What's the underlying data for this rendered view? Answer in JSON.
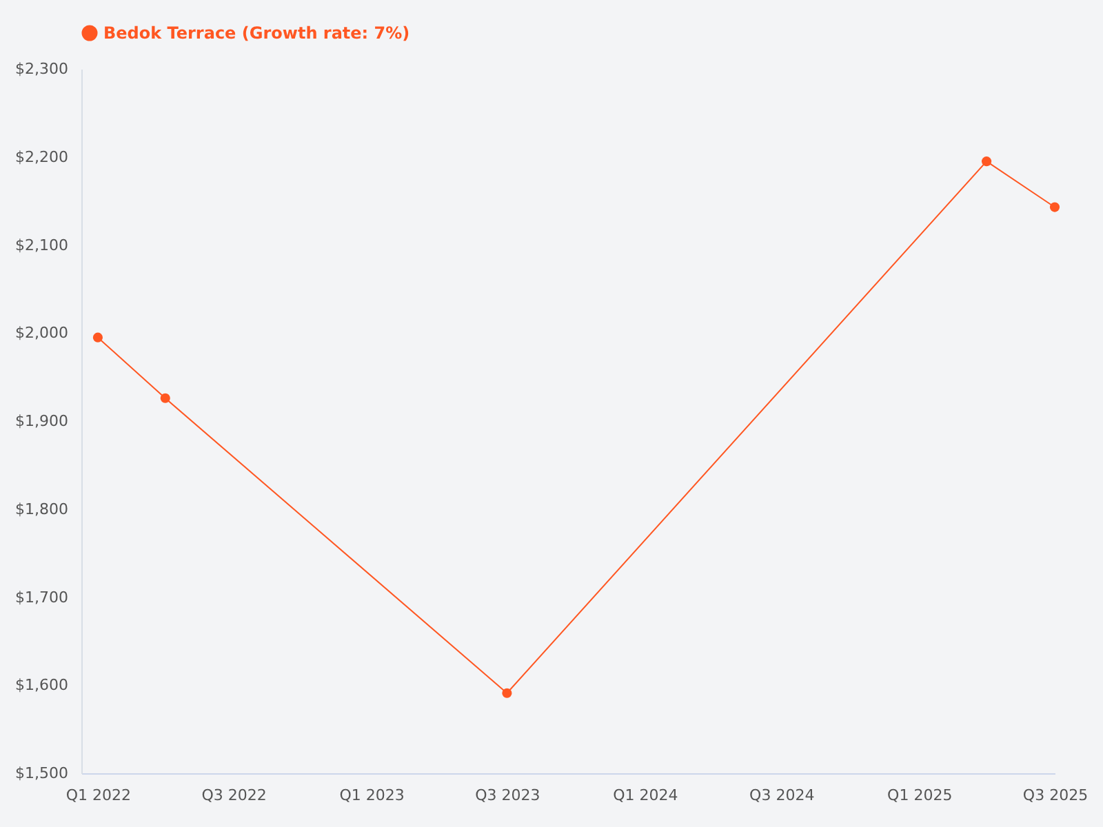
{
  "chart_data": {
    "type": "line",
    "x": [
      "2022-01-01",
      "2022-04-01",
      "2023-07-01",
      "2025-04-01",
      "2025-07-01"
    ],
    "series": [
      {
        "name": "Bedok Terrace (Growth rate: 7%)",
        "color": "#ff5722",
        "values": [
          1995,
          1926,
          1591,
          2195,
          2143
        ]
      }
    ],
    "xlim": [
      "2021-12-10",
      "2025-07-01"
    ],
    "xticks": [
      {
        "value": "2022-01-01",
        "label": "Q1 2022"
      },
      {
        "value": "2022-07-01",
        "label": "Q3 2022"
      },
      {
        "value": "2023-01-01",
        "label": "Q1 2023"
      },
      {
        "value": "2023-07-01",
        "label": "Q3 2023"
      },
      {
        "value": "2024-01-01",
        "label": "Q1 2024"
      },
      {
        "value": "2024-07-01",
        "label": "Q3 2024"
      },
      {
        "value": "2025-01-01",
        "label": "Q1 2025"
      },
      {
        "value": "2025-07-01",
        "label": "Q3 2025"
      }
    ],
    "ylim": [
      1500,
      2300
    ],
    "yticks": [
      {
        "value": 1500,
        "label": "$1,500"
      },
      {
        "value": 1600,
        "label": "$1,600"
      },
      {
        "value": 1700,
        "label": "$1,700"
      },
      {
        "value": 1800,
        "label": "$1,800"
      },
      {
        "value": 1900,
        "label": "$1,900"
      },
      {
        "value": 2000,
        "label": "$2,000"
      },
      {
        "value": 2100,
        "label": "$2,100"
      },
      {
        "value": 2200,
        "label": "$2,200"
      },
      {
        "value": 2300,
        "label": "$2,300"
      }
    ],
    "grid": false,
    "legend": "top left",
    "marker": "circle",
    "line_style": "solid"
  }
}
